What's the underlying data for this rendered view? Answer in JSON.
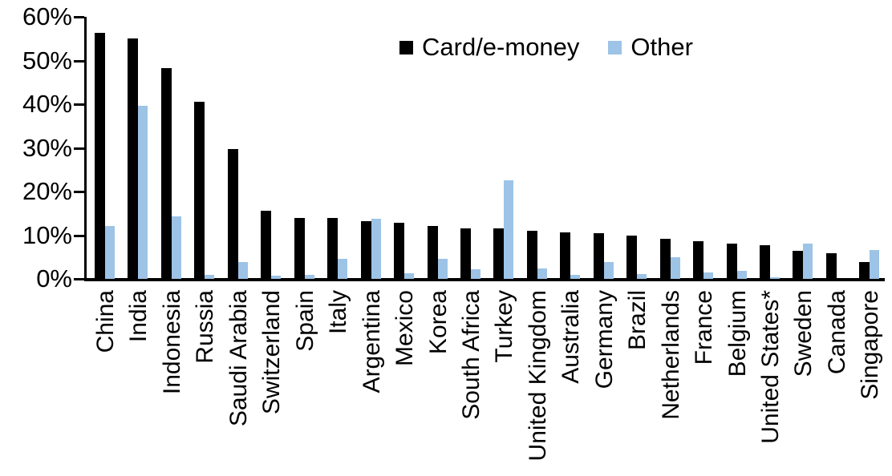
{
  "chart_data": {
    "type": "bar",
    "title": "",
    "xlabel": "",
    "ylabel": "",
    "ylim": [
      0,
      60
    ],
    "y_ticks": [
      "0%",
      "10%",
      "20%",
      "30%",
      "40%",
      "50%",
      "60%"
    ],
    "grid": false,
    "legend_position": "top-center",
    "categories": [
      "China",
      "India",
      "Indonesia",
      "Russia",
      "Saudi Arabia",
      "Switzerland",
      "Spain",
      "Italy",
      "Argentina",
      "Mexico",
      "Korea",
      "South Africa",
      "Turkey",
      "United Kingdom",
      "Australia",
      "Germany",
      "Brazil",
      "Netherlands",
      "France",
      "Belgium",
      "United States*",
      "Sweden",
      "Canada",
      "Singapore"
    ],
    "series": [
      {
        "name": "Card/e-money",
        "color": "#000000",
        "values": [
          56.3,
          55.0,
          48.3,
          40.5,
          29.8,
          15.6,
          14.0,
          14.0,
          13.3,
          12.9,
          12.1,
          11.6,
          11.5,
          11.0,
          10.7,
          10.5,
          9.9,
          9.2,
          8.7,
          8.1,
          7.7,
          6.4,
          5.9,
          3.8
        ]
      },
      {
        "name": "Other",
        "color": "#9DC3E6",
        "values": [
          12.2,
          39.7,
          14.4,
          0.9,
          3.8,
          0.8,
          1.0,
          4.6,
          13.8,
          1.3,
          4.5,
          2.2,
          22.5,
          2.3,
          1.0,
          3.9,
          1.1,
          4.9,
          1.5,
          1.9,
          0.3,
          8.0,
          0.0,
          6.6
        ]
      }
    ]
  }
}
